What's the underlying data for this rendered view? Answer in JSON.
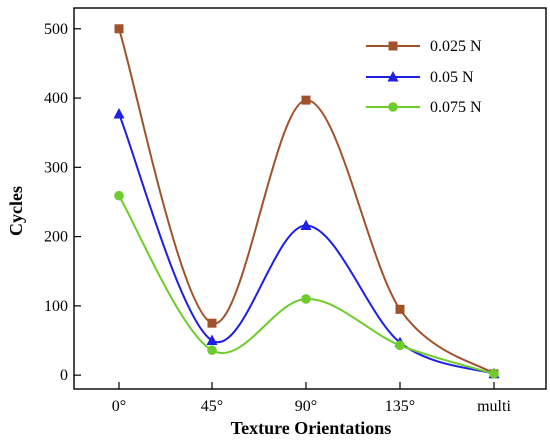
{
  "chart_data": {
    "type": "line",
    "smooth": true,
    "categories": [
      "0°",
      "45°",
      "90°",
      "135°",
      "multi"
    ],
    "xlabel": "Texture Orientations",
    "ylabel": "Cycles",
    "ylim": [
      -20,
      530
    ],
    "yticks": [
      0,
      100,
      200,
      300,
      400,
      500
    ],
    "grid": false,
    "legend": "top-right",
    "series": [
      {
        "name": "0.025 N",
        "color": "#a0522d",
        "marker": "square",
        "values": [
          500,
          75,
          397,
          95,
          2
        ]
      },
      {
        "name": "0.05 N",
        "color": "#1e1ee6",
        "marker": "triangle",
        "values": [
          377,
          50,
          216,
          47,
          2
        ]
      },
      {
        "name": "0.075 N",
        "color": "#6dcc2b",
        "marker": "circle",
        "values": [
          259,
          36,
          110,
          43,
          2
        ]
      }
    ]
  }
}
